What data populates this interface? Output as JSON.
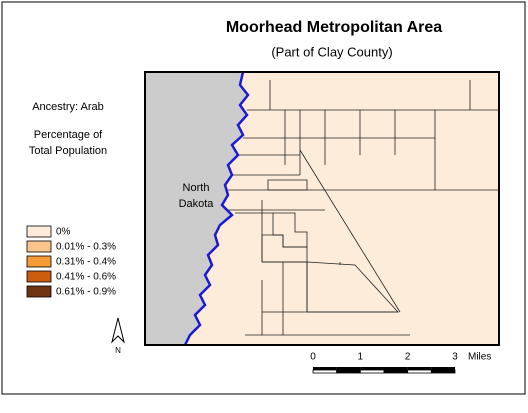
{
  "header": {
    "title": "Moorhead Metropolitan Area",
    "subtitle": "(Part of Clay County)"
  },
  "side_labels": {
    "ancestry": "Ancestry: Arab",
    "measure_line1": "Percentage of",
    "measure_line2": "Total Population"
  },
  "map": {
    "region_line1": "North",
    "region_line2": "Dakota",
    "land_color": "#fcecd9",
    "other_state_color": "#cccccc",
    "river_color": "#1a1ad6"
  },
  "legend": {
    "items": [
      {
        "label": "0%",
        "color": "#fcecd9"
      },
      {
        "label": "0.01% - 0.3%",
        "color": "#fbc48a"
      },
      {
        "label": "0.31% - 0.4%",
        "color": "#f59a36"
      },
      {
        "label": "0.41% - 0.6%",
        "color": "#cc5c0e"
      },
      {
        "label": "0.61% - 0.9%",
        "color": "#703310"
      }
    ]
  },
  "north_arrow": "N",
  "scale_bar": {
    "labels": [
      "0",
      "1",
      "2",
      "3"
    ],
    "unit": "Miles"
  }
}
